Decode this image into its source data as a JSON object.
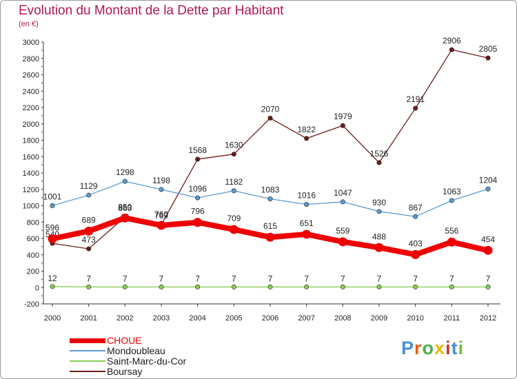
{
  "header": {
    "title": "Evolution du Montant de la Dette par Habitant",
    "subtitle": "(en €)"
  },
  "logo": {
    "text": "Proxiti",
    "colors": [
      "#4a90d9",
      "#e85d10",
      "#4caf50",
      "#e8b800",
      "#c0392b",
      "#4a90d9",
      "#7cb342"
    ]
  },
  "chart_data": {
    "type": "line",
    "title": "Evolution du Montant de la Dette par Habitant",
    "subtitle": "(en €)",
    "x": [
      "2000",
      "2001",
      "2002",
      "2003",
      "2004",
      "2005",
      "2006",
      "2007",
      "2008",
      "2009",
      "2010",
      "2011",
      "2012"
    ],
    "ylim": [
      -200,
      3000
    ],
    "yticks": [
      -200,
      0,
      200,
      400,
      600,
      800,
      1000,
      1200,
      1400,
      1600,
      1800,
      2000,
      2200,
      2400,
      2600,
      2800,
      3000
    ],
    "grid": false,
    "legend_position": "bottom-left",
    "series": [
      {
        "name": "Boursay",
        "color": "#6e1a1a",
        "values": [
          540,
          473,
          863,
          769,
          1568,
          1630,
          2070,
          1822,
          1979,
          1526,
          2191,
          2906,
          2805
        ]
      },
      {
        "name": "Mondoubleau",
        "color": "#5b9bd5",
        "values": [
          1001,
          1129,
          1298,
          1198,
          1096,
          1182,
          1083,
          1016,
          1047,
          930,
          867,
          1063,
          1204
        ]
      },
      {
        "name": "Saint-Marc-du-Cor",
        "color": "#88cc55",
        "values": [
          12,
          7,
          7,
          7,
          7,
          7,
          7,
          7,
          7,
          7,
          7,
          7,
          7
        ]
      },
      {
        "name": "CHOUE",
        "color": "#ee0000",
        "values": [
          596,
          689,
          850,
          760,
          796,
          709,
          615,
          651,
          559,
          488,
          403,
          556,
          454
        ]
      }
    ],
    "legend": [
      {
        "name": "CHOUE",
        "color": "#ee0000"
      },
      {
        "name": "Mondoubleau",
        "color": "#5b9bd5"
      },
      {
        "name": "Saint-Marc-du-Cor",
        "color": "#88cc55"
      },
      {
        "name": "Boursay",
        "color": "#6e1a1a"
      }
    ]
  }
}
